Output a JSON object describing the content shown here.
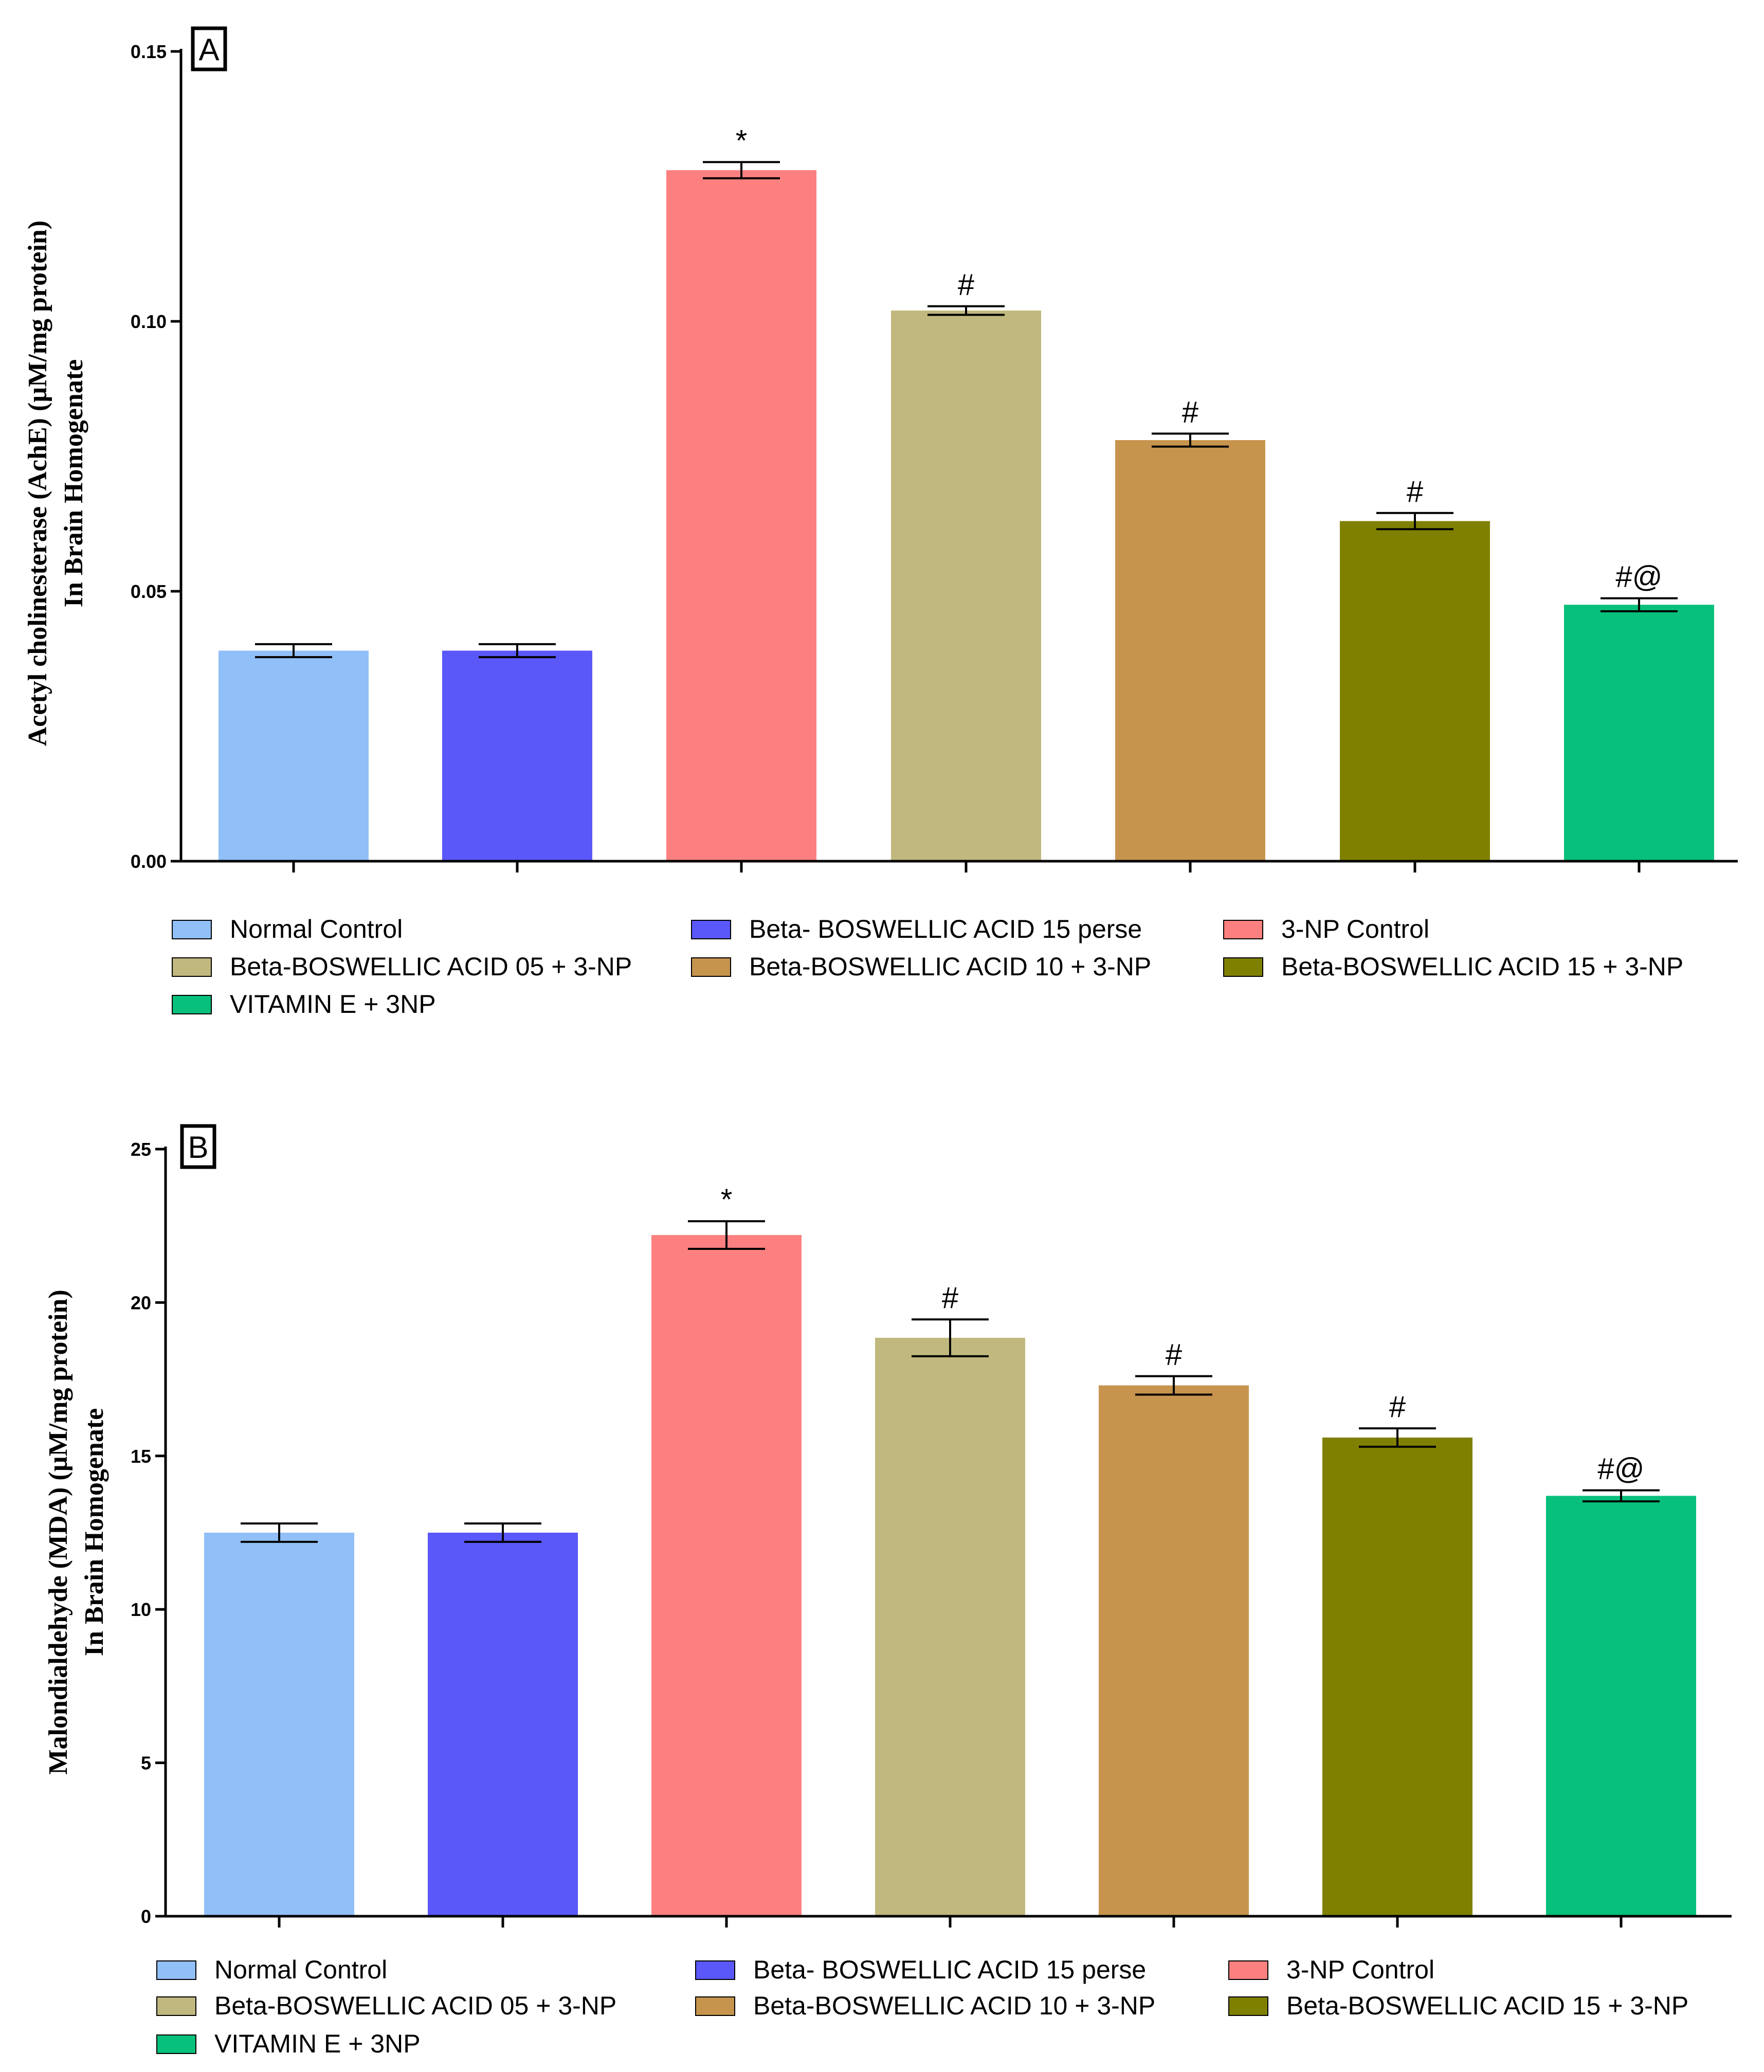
{
  "chart_data": [
    {
      "type": "bar",
      "panel_label": "A",
      "ylabel_lines": [
        "Acetyl cholinesterase (AchE) (µM/mg protein)",
        "In Brain Homogenate"
      ],
      "ylim": [
        0,
        0.15
      ],
      "yticks": [
        "0.00",
        "0.05",
        "0.10",
        "0.15"
      ],
      "ytick_values": [
        0,
        0.05,
        0.1,
        0.15
      ],
      "categories": [
        "Normal Control",
        "Beta- BOSWELLIC ACID 15 perse",
        "3-NP Control",
        "Beta-BOSWELLIC ACID 05 + 3-NP",
        "Beta-BOSWELLIC ACID 10 + 3-NP",
        "Beta-BOSWELLIC ACID 15 + 3-NP",
        "VITAMIN E + 3NP"
      ],
      "values": [
        0.039,
        0.039,
        0.128,
        0.102,
        0.078,
        0.063,
        0.0475
      ],
      "errors": [
        0.0012,
        0.0012,
        0.0015,
        0.0008,
        0.0012,
        0.0015,
        0.0012
      ],
      "annotations": [
        "",
        "",
        "*",
        "#",
        "#",
        "#",
        "#@"
      ],
      "legend": {
        "position": "below",
        "entries": [
          "Normal Control",
          "Beta- BOSWELLIC ACID 15 perse",
          "3-NP Control",
          "Beta-BOSWELLIC ACID 05 + 3-NP",
          "Beta-BOSWELLIC ACID 10 + 3-NP",
          "Beta-BOSWELLIC ACID 15 + 3-NP",
          "VITAMIN E + 3NP"
        ]
      },
      "grid": false
    },
    {
      "type": "bar",
      "panel_label": "B",
      "ylabel_lines": [
        "Malondialdehyde (MDA) (µM/mg protein)",
        "In Brain  Homogenate"
      ],
      "ylim": [
        0,
        25
      ],
      "yticks": [
        "0",
        "5",
        "10",
        "15",
        "20",
        "25"
      ],
      "ytick_values": [
        0,
        5,
        10,
        15,
        20,
        25
      ],
      "categories": [
        "Normal Control",
        "Beta- BOSWELLIC ACID 15 perse",
        "3-NP Control",
        "Beta-BOSWELLIC ACID 05 + 3-NP",
        "Beta-BOSWELLIC ACID 10 + 3-NP",
        "Beta-BOSWELLIC ACID 15 + 3-NP",
        "VITAMIN E + 3NP"
      ],
      "values": [
        12.5,
        12.5,
        22.2,
        18.85,
        17.3,
        15.6,
        13.7
      ],
      "errors": [
        0.3,
        0.3,
        0.45,
        0.6,
        0.3,
        0.3,
        0.18
      ],
      "annotations": [
        "",
        "",
        "*",
        "#",
        "#",
        "#",
        "#@"
      ],
      "legend": {
        "position": "below",
        "entries": [
          "Normal Control",
          "Beta- BOSWELLIC ACID 15 perse",
          "3-NP Control",
          "Beta-BOSWELLIC ACID 05 + 3-NP",
          "Beta-BOSWELLIC ACID 10 + 3-NP",
          "Beta-BOSWELLIC ACID 15 + 3-NP",
          "VITAMIN E + 3NP"
        ]
      },
      "grid": false
    }
  ],
  "colors": {
    "series": [
      "#91bff8",
      "#5a58f9",
      "#fd8080",
      "#c1b87f",
      "#c7944e",
      "#808000",
      "#07c07b"
    ],
    "axis": "#000000"
  }
}
